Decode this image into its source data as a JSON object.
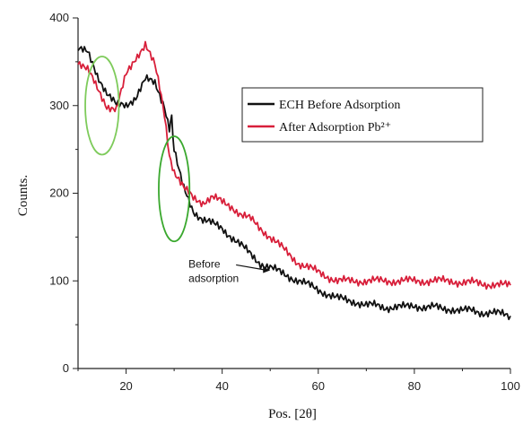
{
  "chart_data": {
    "type": "line",
    "xlabel": "Pos. [2θ]",
    "ylabel": "Counts.",
    "xlim": [
      10,
      100
    ],
    "ylim": [
      0,
      400
    ],
    "x_ticks": [
      20,
      40,
      60,
      80,
      100
    ],
    "y_ticks": [
      0,
      100,
      200,
      300,
      400
    ],
    "grid": false,
    "legend_position": "top-right",
    "series": [
      {
        "name": "ECH Before Adsorption",
        "color": "#111111",
        "x": [
          10,
          12,
          14,
          16,
          18,
          20,
          22,
          24,
          26,
          28,
          29,
          29.5,
          30,
          31,
          32,
          34,
          36,
          38,
          40,
          42,
          44,
          46,
          48,
          50,
          52,
          54,
          56,
          58,
          60,
          62,
          64,
          66,
          68,
          70,
          72,
          74,
          76,
          78,
          80,
          82,
          84,
          86,
          88,
          90,
          92,
          94,
          96,
          98,
          100
        ],
        "y": [
          365,
          360,
          335,
          315,
          300,
          300,
          310,
          330,
          325,
          300,
          275,
          285,
          250,
          225,
          205,
          180,
          170,
          165,
          160,
          150,
          140,
          130,
          120,
          115,
          110,
          105,
          100,
          95,
          90,
          85,
          80,
          78,
          76,
          72,
          72,
          70,
          70,
          70,
          72,
          70,
          70,
          68,
          68,
          66,
          66,
          64,
          64,
          62,
          60
        ]
      },
      {
        "name": "After Adsorption Pb²⁺",
        "color": "#d81f3a",
        "x": [
          10,
          12,
          14,
          16,
          18,
          20,
          22,
          24,
          26,
          27,
          28,
          29,
          30,
          31,
          32,
          34,
          36,
          38,
          40,
          42,
          44,
          46,
          48,
          50,
          52,
          54,
          56,
          58,
          60,
          62,
          64,
          66,
          68,
          70,
          72,
          74,
          76,
          78,
          80,
          82,
          84,
          86,
          88,
          90,
          92,
          94,
          96,
          98,
          100
        ],
        "y": [
          350,
          340,
          320,
          300,
          295,
          335,
          355,
          370,
          345,
          320,
          290,
          245,
          225,
          215,
          205,
          195,
          190,
          195,
          190,
          185,
          175,
          170,
          160,
          150,
          140,
          130,
          120,
          115,
          110,
          105,
          100,
          100,
          100,
          100,
          100,
          100,
          100,
          100,
          100,
          100,
          100,
          100,
          100,
          98,
          98,
          97,
          96,
          95,
          95
        ]
      }
    ],
    "annotations": [
      {
        "text": "Before",
        "line2": "adsorption",
        "x": 33,
        "y": 108,
        "arrow_to_x": 50,
        "arrow_to_y": 112
      },
      {
        "shape": "ellipse",
        "color": "#7ecb5b",
        "cx": 15,
        "cy": 300,
        "rx": 3.5,
        "ry": 56
      },
      {
        "shape": "ellipse",
        "color": "#3aa82e",
        "cx": 30,
        "cy": 205,
        "rx": 3.2,
        "ry": 60
      }
    ]
  }
}
